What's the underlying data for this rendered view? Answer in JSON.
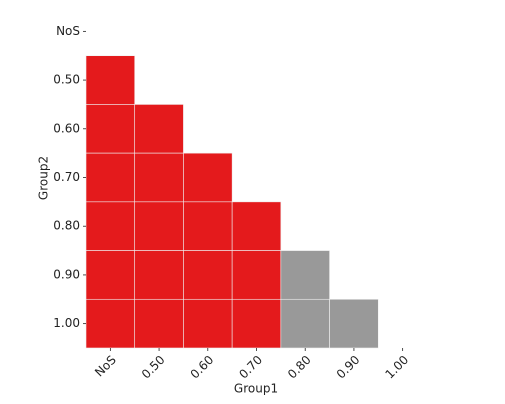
{
  "chart_data": {
    "type": "heatmap",
    "x_label": "Group1",
    "y_label": "Group2",
    "x_categories": [
      "NoS",
      "0.50",
      "0.60",
      "0.70",
      "0.80",
      "0.90",
      "1.00"
    ],
    "y_categories": [
      "NoS",
      "0.50",
      "0.60",
      "0.70",
      "0.80",
      "0.90",
      "1.00"
    ],
    "cell_colors": [
      [
        null,
        null,
        null,
        null,
        null,
        null,
        null
      ],
      [
        "#e41a1c",
        null,
        null,
        null,
        null,
        null,
        null
      ],
      [
        "#e41a1c",
        "#e41a1c",
        null,
        null,
        null,
        null,
        null
      ],
      [
        "#e41a1c",
        "#e41a1c",
        "#e41a1c",
        null,
        null,
        null,
        null
      ],
      [
        "#e41a1c",
        "#e41a1c",
        "#e41a1c",
        "#e41a1c",
        null,
        null,
        null
      ],
      [
        "#e41a1c",
        "#e41a1c",
        "#e41a1c",
        "#e41a1c",
        "#999999",
        null,
        null
      ],
      [
        "#e41a1c",
        "#e41a1c",
        "#e41a1c",
        "#e41a1c",
        "#999999",
        "#999999",
        null
      ]
    ]
  }
}
